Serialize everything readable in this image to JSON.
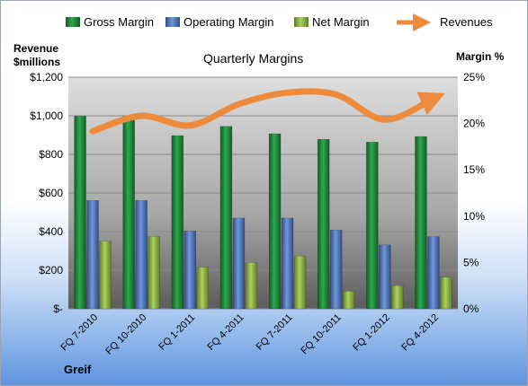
{
  "footer_label": "Greif",
  "chart_data": {
    "type": "bar",
    "title": "Quarterly Margins",
    "ylabel_left": "Revenue $millions",
    "ylabel_right": "Margin %",
    "categories": [
      "FQ 7-2010",
      "FQ 10-2010",
      "FQ 1-2011",
      "FQ 4-2011",
      "FQ 7-2011",
      "FQ 10-2011",
      "FQ 1-2012",
      "FQ 4-2012"
    ],
    "left_axis": {
      "min": 0,
      "max": 1200,
      "ticks": [
        "$-",
        "$200",
        "$400",
        "$600",
        "$800",
        "$1,000",
        "$1,200"
      ]
    },
    "right_axis": {
      "min": 0,
      "max": 25,
      "ticks": [
        "0%",
        "5%",
        "10%",
        "15%",
        "20%",
        "25%"
      ]
    },
    "grid": true,
    "legend_position": "top",
    "series": [
      {
        "name": "Gross Margin",
        "axis": "right",
        "color": "#1e8a3c",
        "values": [
          20.8,
          20.8,
          18.7,
          19.7,
          18.9,
          18.3,
          18.0,
          18.6
        ]
      },
      {
        "name": "Operating Margin",
        "axis": "right",
        "color": "#4f73b8",
        "values": [
          11.7,
          11.7,
          8.4,
          9.8,
          9.8,
          8.5,
          6.9,
          7.8
        ]
      },
      {
        "name": "Net Margin",
        "axis": "right",
        "color": "#8db33a",
        "values": [
          7.3,
          7.8,
          4.5,
          5.0,
          5.7,
          1.9,
          2.5,
          3.4
        ]
      },
      {
        "name": "Revenues",
        "axis": "left",
        "color": "#ee8a3c",
        "type": "line",
        "values": [
          920,
          1000,
          950,
          1060,
          1120,
          1110,
          980,
          1090
        ]
      }
    ]
  }
}
